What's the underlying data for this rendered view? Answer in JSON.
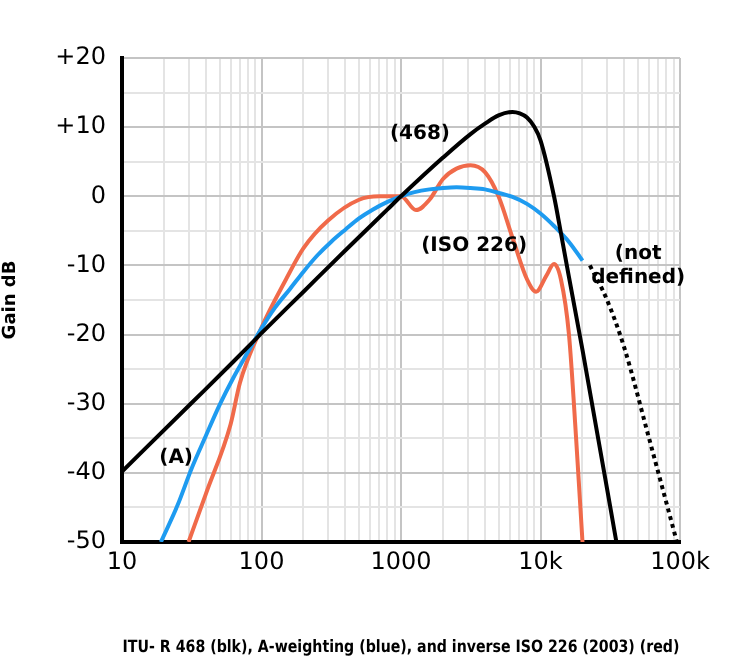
{
  "chart_data": {
    "type": "line",
    "xlabel": "ITU- R 468 (blk), A-weighting (blue), and inverse ISO 226 (2003) (red)",
    "ylabel": "Gain dB",
    "log": "x",
    "grid": true,
    "legend": false,
    "marker": "none",
    "xlim": [
      10,
      100000
    ],
    "ylim": [
      -50,
      20
    ],
    "xticks": [
      10,
      {
        "value": 20,
        "label": null
      },
      {
        "value": 30,
        "label": null
      },
      {
        "value": 40,
        "label": null
      },
      {
        "value": 50,
        "label": null
      },
      {
        "value": 60,
        "label": null
      },
      {
        "value": 70,
        "label": null
      },
      {
        "value": 80,
        "label": null
      },
      {
        "value": 90,
        "label": null
      },
      100,
      {
        "value": 200,
        "label": null
      },
      {
        "value": 300,
        "label": null
      },
      {
        "value": 400,
        "label": null
      },
      {
        "value": 500,
        "label": null
      },
      {
        "value": 600,
        "label": null
      },
      {
        "value": 700,
        "label": null
      },
      {
        "value": 800,
        "label": null
      },
      {
        "value": 900,
        "label": null
      },
      1000,
      {
        "value": 2000,
        "label": null
      },
      {
        "value": 3000,
        "label": null
      },
      {
        "value": 4000,
        "label": null
      },
      {
        "value": 5000,
        "label": null
      },
      {
        "value": 6000,
        "label": null
      },
      {
        "value": 7000,
        "label": null
      },
      {
        "value": 8000,
        "label": null
      },
      {
        "value": 9000,
        "label": null
      },
      {
        "value": 10000,
        "label": "10k"
      },
      {
        "value": 20000,
        "label": null
      },
      {
        "value": 30000,
        "label": null
      },
      {
        "value": 40000,
        "label": null
      },
      {
        "value": 50000,
        "label": null
      },
      {
        "value": 60000,
        "label": null
      },
      {
        "value": 70000,
        "label": null
      },
      {
        "value": 80000,
        "label": null
      },
      {
        "value": 90000,
        "label": null
      },
      {
        "value": 100000,
        "label": "100k"
      }
    ],
    "yticks": [
      -50,
      {
        "value": -45,
        "label": null
      },
      -40,
      {
        "value": -35,
        "label": null
      },
      -30,
      {
        "value": -25,
        "label": null
      },
      -20,
      {
        "value": -15,
        "label": null
      },
      -10,
      {
        "value": -5,
        "label": null
      },
      0,
      {
        "value": 5,
        "label": null
      },
      {
        "value": 10,
        "label": "+10"
      },
      {
        "value": 15,
        "label": null
      },
      {
        "value": 20,
        "label": "+20"
      }
    ],
    "series": [
      {
        "color": "#000000",
        "line_style": "solid",
        "x": [
          10,
          31.5,
          63,
          100,
          200,
          400,
          800,
          1000,
          2000,
          3150,
          4000,
          5000,
          6300,
          7100,
          8000,
          9000,
          10000,
          12500,
          14000,
          16000,
          20000,
          35000
        ],
        "values": [
          -39.8,
          -29.9,
          -23.9,
          -19.8,
          -13.8,
          -7.8,
          -1.9,
          0,
          5.6,
          9,
          10.5,
          11.7,
          12.2,
          12,
          11.4,
          10.1,
          8.1,
          0,
          -5.3,
          -11.7,
          -22.2,
          -50
        ]
      },
      {
        "color": "#000000",
        "line_style": "dotted",
        "x": [
          22600,
          30000,
          40000,
          60000,
          95000
        ],
        "values": [
          -10,
          -15,
          -22,
          -35,
          -50
        ]
      },
      {
        "color": "#1e9bf0",
        "line_style": "solid",
        "x": [
          19,
          25,
          31.5,
          40,
          50,
          63,
          80,
          100,
          125,
          160,
          200,
          250,
          315,
          400,
          500,
          630,
          800,
          1000,
          1250,
          1600,
          2000,
          2500,
          3150,
          4000,
          5000,
          6300,
          8000,
          10000,
          12500,
          16000,
          20000
        ],
        "values": [
          -50,
          -44.7,
          -39.4,
          -34.6,
          -30.2,
          -26.2,
          -22.5,
          -19.1,
          -16.1,
          -13.4,
          -10.9,
          -8.6,
          -6.6,
          -4.8,
          -3.2,
          -1.9,
          -0.8,
          0,
          0.6,
          1,
          1.2,
          1.3,
          1.2,
          1,
          0.5,
          -0.1,
          -1.1,
          -2.5,
          -4.3,
          -6.6,
          -9.3
        ]
      },
      {
        "color": "#f06a4a",
        "line_style": "solid",
        "x": [
          30,
          40,
          60,
          70,
          100,
          150,
          200,
          300,
          500,
          700,
          1000,
          1280,
          1600,
          2000,
          2500,
          3150,
          4000,
          5000,
          6300,
          8000,
          9300,
          11000,
          12500,
          14000,
          16000,
          18000,
          20000
        ],
        "values": [
          -50,
          -43,
          -33,
          -27,
          -19,
          -12,
          -7.5,
          -3.5,
          -0.5,
          0,
          0,
          -2,
          -0.5,
          2.5,
          4,
          4.5,
          3.5,
          0,
          -6,
          -12,
          -13.8,
          -11.5,
          -9.8,
          -12,
          -20,
          -35,
          -50
        ]
      }
    ],
    "annotations": [
      "(468)",
      "(ISO 226)",
      "(not defined)",
      "(A)"
    ]
  }
}
